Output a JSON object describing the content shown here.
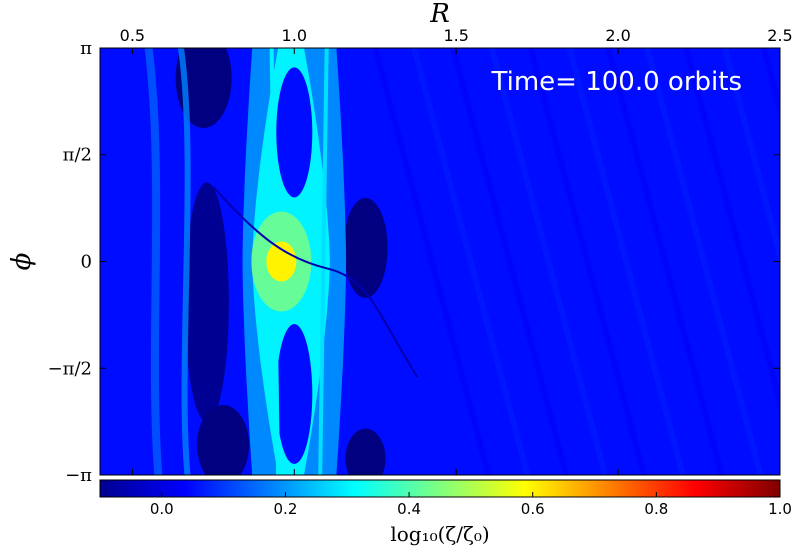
{
  "chart_data": {
    "type": "heatmap",
    "title": "",
    "annotation": "Time= 100.0 orbits",
    "xlabel": "R",
    "ylabel": "ϕ",
    "xlim": [
      0.4,
      2.5
    ],
    "ylim": [
      -3.14159,
      3.14159
    ],
    "x_ticks": [
      {
        "value": 0.5,
        "label": "0.5"
      },
      {
        "value": 1.0,
        "label": "1.0"
      },
      {
        "value": 1.5,
        "label": "1.5"
      },
      {
        "value": 2.0,
        "label": "2.0"
      },
      {
        "value": 2.5,
        "label": "2.5"
      }
    ],
    "y_ticks": [
      {
        "value": 3.14159,
        "label": "π"
      },
      {
        "value": 1.5708,
        "label": "π/2"
      },
      {
        "value": 0,
        "label": "0"
      },
      {
        "value": -1.5708,
        "label": "−π/2"
      },
      {
        "value": -3.14159,
        "label": "−π"
      }
    ],
    "colorbar": {
      "label": "log₁₀(ζ/ζ₀)",
      "range": [
        -0.1,
        1.0
      ],
      "colormap": "jet",
      "ticks": [
        {
          "value": 0.0,
          "label": "0.0"
        },
        {
          "value": 0.2,
          "label": "0.2"
        },
        {
          "value": 0.4,
          "label": "0.4"
        },
        {
          "value": 0.6,
          "label": "0.6"
        },
        {
          "value": 0.8,
          "label": "0.8"
        },
        {
          "value": 1.0,
          "label": "1.0"
        }
      ]
    },
    "features": {
      "background_level": 0.05,
      "low_trough_level": -0.1,
      "bright_band_level": 0.3,
      "peak_level": 0.6,
      "peak_location": {
        "R": 0.96,
        "phi": 0.0
      }
    }
  },
  "colors": {
    "background": "#ffffff",
    "axis": "#000000",
    "annotation": "#ffffff"
  }
}
